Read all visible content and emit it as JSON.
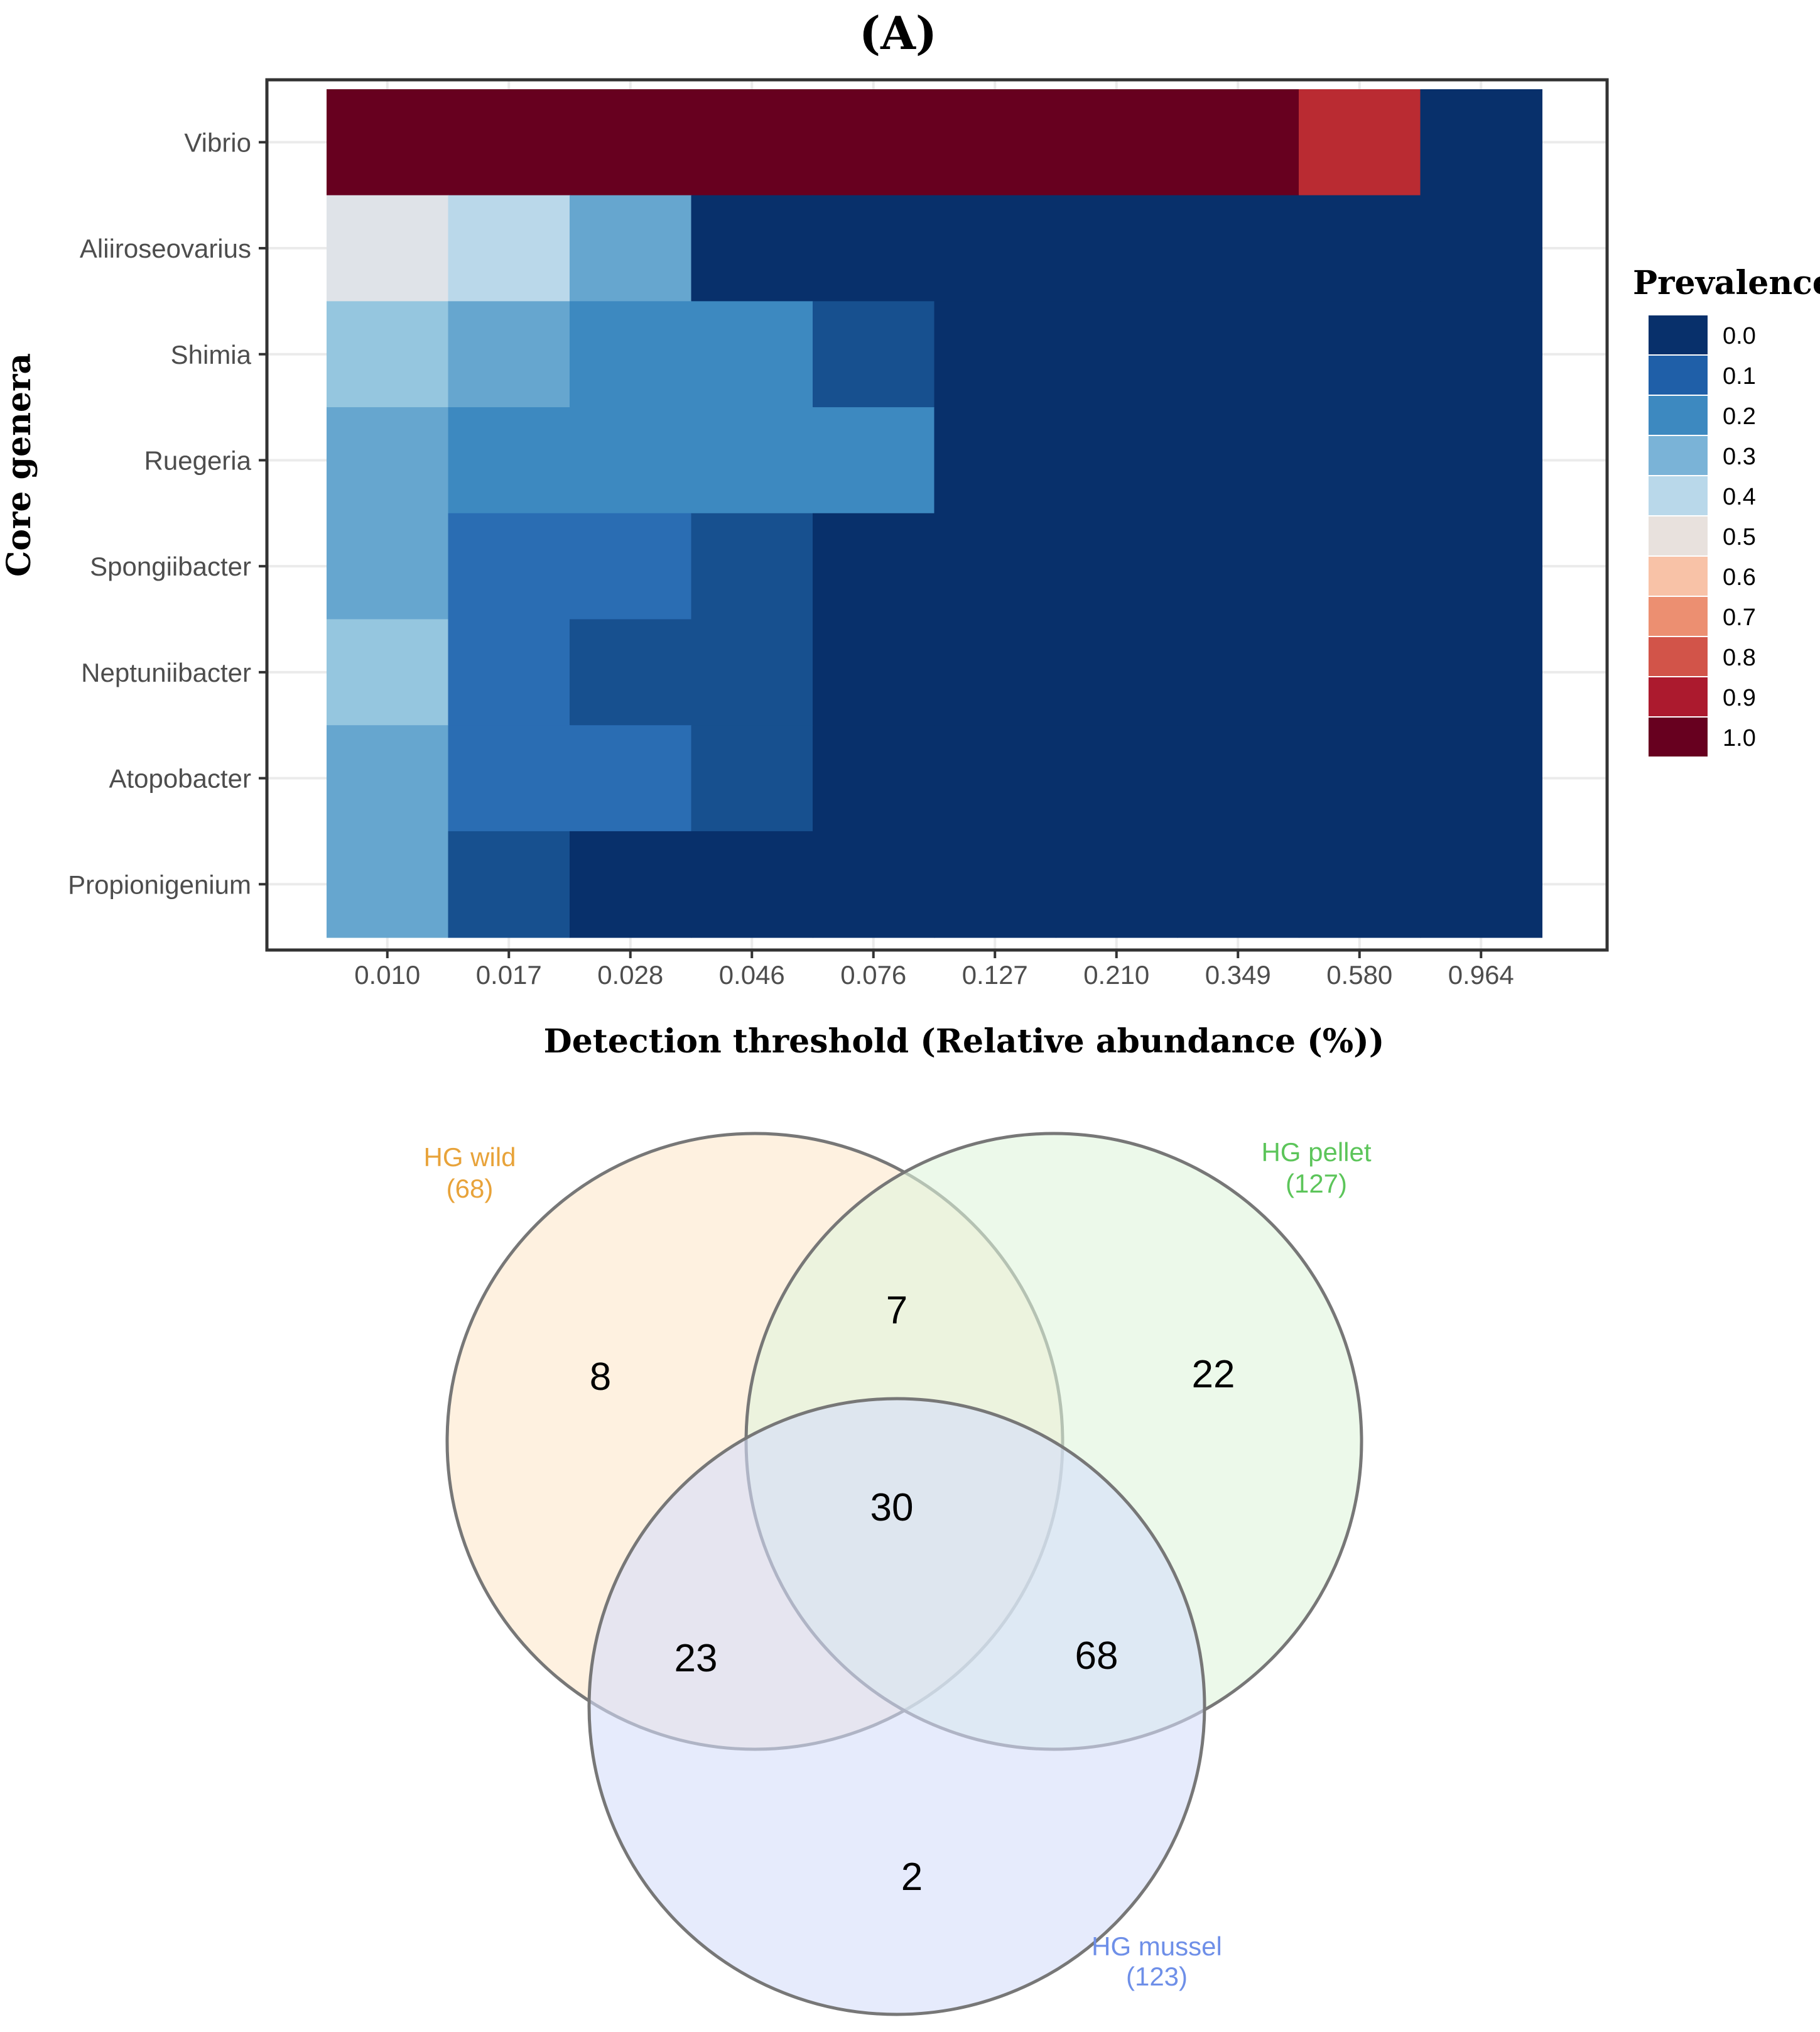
{
  "panel_label": "(A)",
  "chart_data": [
    {
      "type": "heatmap",
      "title": "",
      "xlabel": "Detection threshold (Relative abundance (%))",
      "ylabel": "Core genera",
      "x_categories": [
        "0.010",
        "0.017",
        "0.028",
        "0.046",
        "0.076",
        "0.127",
        "0.210",
        "0.349",
        "0.580",
        "0.964"
      ],
      "y_categories": [
        "Vibrio",
        "Aliiroseovarius",
        "Shimia",
        "Ruegeria",
        "Spongiibacter",
        "Neptuniibacter",
        "Atopobacter",
        "Propionigenium"
      ],
      "values": [
        [
          1.0,
          1.0,
          1.0,
          1.0,
          1.0,
          1.0,
          1.0,
          1.0,
          0.85,
          0.0
        ],
        [
          0.5,
          0.4,
          0.3,
          0.0,
          0.0,
          0.0,
          0.0,
          0.0,
          0.0,
          0.0
        ],
        [
          0.35,
          0.3,
          0.2,
          0.2,
          0.1,
          0.0,
          0.0,
          0.0,
          0.0,
          0.0
        ],
        [
          0.3,
          0.2,
          0.2,
          0.2,
          0.2,
          0.0,
          0.0,
          0.0,
          0.0,
          0.0
        ],
        [
          0.3,
          0.15,
          0.15,
          0.1,
          0.0,
          0.0,
          0.0,
          0.0,
          0.0,
          0.0
        ],
        [
          0.35,
          0.15,
          0.1,
          0.1,
          0.0,
          0.0,
          0.0,
          0.0,
          0.0,
          0.0
        ],
        [
          0.3,
          0.15,
          0.15,
          0.1,
          0.0,
          0.0,
          0.0,
          0.0,
          0.0,
          0.0
        ],
        [
          0.3,
          0.1,
          0.0,
          0.0,
          0.0,
          0.0,
          0.0,
          0.0,
          0.0,
          0.0
        ]
      ],
      "legend": {
        "title": "Prevalence",
        "placement": "right",
        "entries": [
          {
            "label": "0.0",
            "color": "#08306b"
          },
          {
            "label": "0.1",
            "color": "#1f5fa8"
          },
          {
            "label": "0.2",
            "color": "#3d89c0"
          },
          {
            "label": "0.3",
            "color": "#7ab3d7"
          },
          {
            "label": "0.4",
            "color": "#b9d8ea"
          },
          {
            "label": "0.5",
            "color": "#e8e1dd"
          },
          {
            "label": "0.6",
            "color": "#f8c2a7"
          },
          {
            "label": "0.7",
            "color": "#ec8f71"
          },
          {
            "label": "0.8",
            "color": "#d25449"
          },
          {
            "label": "0.9",
            "color": "#ac1a2e"
          },
          {
            "label": "1.0",
            "color": "#67001f"
          }
        ]
      },
      "color_scale": [
        {
          "v": 0.0,
          "color": "#08306b"
        },
        {
          "v": 0.1,
          "color": "#17508f"
        },
        {
          "v": 0.15,
          "color": "#2a6db3"
        },
        {
          "v": 0.2,
          "color": "#3d89c0"
        },
        {
          "v": 0.3,
          "color": "#66a6cf"
        },
        {
          "v": 0.35,
          "color": "#95c6df"
        },
        {
          "v": 0.4,
          "color": "#bad8ea"
        },
        {
          "v": 0.5,
          "color": "#dfe3e8"
        },
        {
          "v": 0.6,
          "color": "#f8c2a7"
        },
        {
          "v": 0.7,
          "color": "#ec8f71"
        },
        {
          "v": 0.8,
          "color": "#d25449"
        },
        {
          "v": 0.85,
          "color": "#ba2b32"
        },
        {
          "v": 0.9,
          "color": "#ac1a2e"
        },
        {
          "v": 1.0,
          "color": "#67001f"
        }
      ]
    },
    {
      "type": "venn",
      "sets": [
        {
          "name": "HG wild",
          "count_label": "(68)",
          "size": 68,
          "fill": "#fde8cc",
          "label_color": "#e8a33a"
        },
        {
          "name": "HG pellet",
          "count_label": "(127)",
          "size": 127,
          "fill": "#dff5dc",
          "label_color": "#5cc55a"
        },
        {
          "name": "HG mussel",
          "count_label": "(123)",
          "size": 123,
          "fill": "#d6defa",
          "label_color": "#6e8fe8"
        }
      ],
      "regions": [
        {
          "sets": [
            "HG wild"
          ],
          "value": "8"
        },
        {
          "sets": [
            "HG pellet"
          ],
          "value": "22"
        },
        {
          "sets": [
            "HG mussel"
          ],
          "value": "2"
        },
        {
          "sets": [
            "HG wild",
            "HG pellet"
          ],
          "value": "7"
        },
        {
          "sets": [
            "HG wild",
            "HG mussel"
          ],
          "value": "23"
        },
        {
          "sets": [
            "HG pellet",
            "HG mussel"
          ],
          "value": "68"
        },
        {
          "sets": [
            "HG wild",
            "HG pellet",
            "HG mussel"
          ],
          "value": "30"
        }
      ]
    }
  ]
}
